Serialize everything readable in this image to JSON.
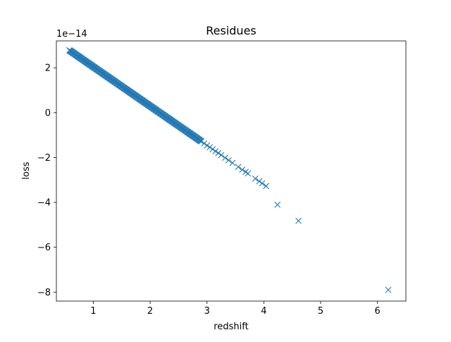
{
  "chart_data": {
    "type": "scatter",
    "title": "Residues",
    "xlabel": "redshift",
    "ylabel": "loss",
    "offset_text": "1e−14",
    "xlim": [
      0.35,
      6.5
    ],
    "ylim": [
      -8.4,
      3.2
    ],
    "xticks": [
      1,
      2,
      3,
      4,
      5,
      6
    ],
    "xtick_labels": [
      "1",
      "2",
      "3",
      "4",
      "5",
      "6"
    ],
    "yticks": [
      2,
      0,
      -2,
      -4,
      -6,
      -8
    ],
    "ytick_labels": [
      "2",
      "0",
      "−2",
      "−4",
      "−6",
      "−8"
    ],
    "grid": false,
    "legend": "none",
    "marker": "x",
    "color": "#1f77b4",
    "series": [
      {
        "x": [
          0.58,
          0.62,
          0.66,
          0.7,
          0.74,
          0.78,
          0.82,
          0.86,
          0.9,
          0.94,
          0.98,
          1.02,
          1.06,
          1.1,
          1.14,
          1.18,
          1.22,
          1.26,
          1.3,
          1.34,
          1.38,
          1.42,
          1.46,
          1.5,
          1.54,
          1.58,
          1.62,
          1.66,
          1.7,
          1.74,
          1.78,
          1.82,
          1.86,
          1.9,
          1.94,
          1.98,
          2.02,
          2.06,
          2.1,
          2.14,
          2.18,
          2.22,
          2.26,
          2.3,
          2.34,
          2.38,
          2.42,
          2.46,
          2.5,
          2.54,
          2.58,
          2.62,
          2.66,
          2.7,
          2.74,
          2.78,
          2.82,
          2.86,
          2.9,
          2.95,
          3.0,
          3.05,
          3.1,
          3.15,
          3.2,
          3.25,
          3.32,
          3.38,
          3.45,
          3.55,
          3.62,
          3.68,
          3.72,
          3.85,
          3.92,
          3.97,
          4.04,
          4.24,
          4.61,
          6.19
        ],
        "y": [
          2.78,
          2.71,
          2.64,
          2.57,
          2.5,
          2.43,
          2.36,
          2.29,
          2.22,
          2.15,
          2.08,
          2.01,
          1.94,
          1.87,
          1.8,
          1.73,
          1.66,
          1.59,
          1.52,
          1.45,
          1.38,
          1.31,
          1.24,
          1.17,
          1.1,
          1.03,
          0.96,
          0.89,
          0.82,
          0.75,
          0.68,
          0.61,
          0.54,
          0.47,
          0.4,
          0.33,
          0.26,
          0.19,
          0.12,
          0.05,
          -0.02,
          -0.09,
          -0.16,
          -0.23,
          -0.3,
          -0.37,
          -0.44,
          -0.51,
          -0.58,
          -0.65,
          -0.72,
          -0.79,
          -0.86,
          -0.93,
          -1.0,
          -1.07,
          -1.14,
          -1.21,
          -1.28,
          -1.37,
          -1.46,
          -1.54,
          -1.63,
          -1.72,
          -1.8,
          -1.89,
          -2.01,
          -2.12,
          -2.24,
          -2.42,
          -2.54,
          -2.64,
          -2.71,
          -2.94,
          -3.06,
          -3.15,
          -3.27,
          -4.1,
          -4.82,
          -7.9
        ]
      }
    ]
  }
}
